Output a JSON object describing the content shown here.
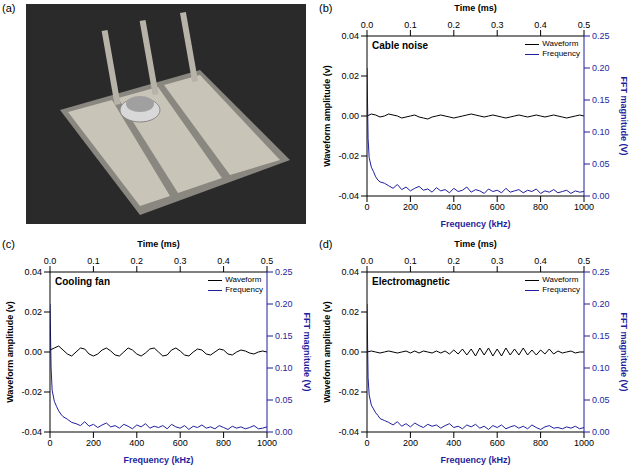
{
  "photo_panel": {
    "label": "(a)"
  },
  "chart_data": [
    {
      "type": "line",
      "label": "(b)",
      "title": "Cable noise",
      "x_label": "Frequency (kHz)",
      "x2_label": "Time (ms)",
      "y_label": "Waveform amplitude (v)",
      "y2_label": "FFT magnitude (V)",
      "xlim": [
        0,
        1000
      ],
      "xticks": [
        0,
        200,
        400,
        600,
        800,
        1000
      ],
      "x2lim": [
        0,
        0.5
      ],
      "x2ticks": [
        {
          "value": 0,
          "label": "0.0"
        },
        0.1,
        0.2,
        0.3,
        0.4,
        0.5
      ],
      "ylim": [
        -0.04,
        0.04
      ],
      "yticks": [
        -0.04,
        -0.02,
        {
          "value": 0,
          "label": "0.00"
        },
        0.02,
        0.04
      ],
      "y2lim": [
        0,
        0.25
      ],
      "y2ticks": [
        {
          "value": 0,
          "label": "0.00"
        },
        0.05,
        {
          "value": 0.1,
          "label": "0.10"
        },
        0.15,
        {
          "value": 0.2,
          "label": "0.20"
        },
        0.25
      ],
      "legend": "top-right",
      "series": [
        {
          "name": "Waveform",
          "color": "#000000",
          "axis": "x2",
          "x": [
            0,
            0.01,
            0.02,
            0.03,
            0.04,
            0.05,
            0.06,
            0.07,
            0.08,
            0.09,
            0.1,
            0.11,
            0.12,
            0.13,
            0.14,
            0.15,
            0.16,
            0.17,
            0.18,
            0.19,
            0.2,
            0.21,
            0.22,
            0.23,
            0.24,
            0.25,
            0.26,
            0.27,
            0.28,
            0.29,
            0.3,
            0.31,
            0.32,
            0.33,
            0.34,
            0.35,
            0.36,
            0.37,
            0.38,
            0.39,
            0.4,
            0.41,
            0.42,
            0.43,
            0.44,
            0.45,
            0.46,
            0.47,
            0.48,
            0.49,
            0.5
          ],
          "values": [
            0.0,
            0.001,
            0.0005,
            -0.0005,
            0.0,
            0.001,
            0.0005,
            0.0,
            -0.001,
            -0.0005,
            0.0,
            0.0005,
            -0.0005,
            -0.001,
            -0.0015,
            -0.0005,
            0.0,
            0.0005,
            0.0,
            -0.0005,
            -0.001,
            -0.0005,
            0.0,
            0.0005,
            0.001,
            0.0005,
            0.0,
            -0.0005,
            0.0,
            0.0005,
            0.0,
            -0.0005,
            -0.001,
            -0.0005,
            0.0,
            0.0005,
            0.0,
            -0.0005,
            0.0,
            0.0005,
            0.0,
            -0.0005,
            0.0,
            0.0005,
            0.0,
            -0.0005,
            -0.001,
            -0.0005,
            0.0,
            0.0005,
            0.0
          ]
        },
        {
          "name": "Frequency",
          "color": "#1f1f9e",
          "axis": "y2",
          "x": [
            0,
            5,
            10,
            20,
            30,
            40,
            50,
            60,
            80,
            100,
            120,
            140,
            160,
            180,
            200,
            220,
            240,
            260,
            280,
            300,
            320,
            340,
            360,
            380,
            400,
            420,
            440,
            460,
            480,
            500,
            520,
            540,
            560,
            580,
            600,
            620,
            640,
            660,
            680,
            700,
            720,
            740,
            760,
            780,
            800,
            820,
            840,
            860,
            880,
            900,
            920,
            940,
            960,
            980,
            1000
          ],
          "values": [
            0.2,
            0.09,
            0.06,
            0.045,
            0.038,
            0.03,
            0.025,
            0.022,
            0.02,
            0.016,
            0.012,
            0.018,
            0.01,
            0.014,
            0.008,
            0.012,
            0.015,
            0.009,
            0.011,
            0.006,
            0.013,
            0.008,
            0.01,
            0.005,
            0.012,
            0.007,
            0.009,
            0.014,
            0.006,
            0.01,
            0.008,
            0.004,
            0.011,
            0.007,
            0.009,
            0.005,
            0.012,
            0.006,
            0.008,
            0.01,
            0.005,
            0.009,
            0.007,
            0.011,
            0.004,
            0.008,
            0.006,
            0.01,
            0.005,
            0.007,
            0.009,
            0.004,
            0.008,
            0.006,
            0.007
          ]
        }
      ]
    },
    {
      "type": "line",
      "label": "(c)",
      "title": "Cooling fan",
      "x_label": "Frequency (kHz)",
      "x2_label": "Time (ms)",
      "y_label": "Waveform amplitude (v)",
      "y2_label": "FFT magnitude (V)",
      "xlim": [
        0,
        1000
      ],
      "xticks": [
        0,
        200,
        400,
        600,
        800,
        1000
      ],
      "x2lim": [
        0,
        0.5
      ],
      "x2ticks": [
        {
          "value": 0,
          "label": "0.0"
        },
        0.1,
        0.2,
        0.3,
        0.4,
        0.5
      ],
      "ylim": [
        -0.04,
        0.04
      ],
      "yticks": [
        -0.04,
        -0.02,
        {
          "value": 0,
          "label": "0.00"
        },
        0.02,
        0.04
      ],
      "y2lim": [
        0,
        0.25
      ],
      "y2ticks": [
        {
          "value": 0,
          "label": "0.00"
        },
        0.05,
        {
          "value": 0.1,
          "label": "0.10"
        },
        0.15,
        {
          "value": 0.2,
          "label": "0.20"
        },
        0.25
      ],
      "legend": "top-right",
      "series": [
        {
          "name": "Waveform",
          "color": "#000000",
          "axis": "x2",
          "x": [
            0,
            0.01,
            0.02,
            0.03,
            0.04,
            0.05,
            0.06,
            0.07,
            0.08,
            0.09,
            0.1,
            0.11,
            0.12,
            0.13,
            0.14,
            0.15,
            0.16,
            0.17,
            0.18,
            0.19,
            0.2,
            0.21,
            0.22,
            0.23,
            0.24,
            0.25,
            0.26,
            0.27,
            0.28,
            0.29,
            0.3,
            0.31,
            0.32,
            0.33,
            0.34,
            0.35,
            0.36,
            0.37,
            0.38,
            0.39,
            0.4,
            0.41,
            0.42,
            0.43,
            0.44,
            0.45,
            0.46,
            0.47,
            0.48,
            0.49,
            0.5
          ],
          "values": [
            0.001,
            0.002,
            0.003,
            0.001,
            -0.001,
            -0.002,
            0.0,
            0.002,
            0.0015,
            -0.001,
            -0.002,
            -0.001,
            0.001,
            0.002,
            0.0005,
            -0.0015,
            -0.002,
            0.0,
            0.002,
            0.001,
            -0.001,
            -0.002,
            -0.0005,
            0.0015,
            0.002,
            0.0,
            -0.002,
            -0.0015,
            0.001,
            0.002,
            0.0005,
            -0.0015,
            -0.002,
            0.0,
            0.0015,
            0.001,
            -0.001,
            -0.0015,
            0.0,
            0.0015,
            0.001,
            -0.001,
            -0.0015,
            0.0,
            0.001,
            0.0005,
            -0.0005,
            -0.001,
            0.0,
            0.0005,
            0.0
          ]
        },
        {
          "name": "Frequency",
          "color": "#1f1f9e",
          "axis": "y2",
          "x": [
            0,
            5,
            10,
            20,
            30,
            40,
            50,
            60,
            80,
            100,
            120,
            140,
            160,
            180,
            200,
            220,
            240,
            260,
            280,
            300,
            320,
            340,
            360,
            380,
            400,
            420,
            440,
            460,
            480,
            500,
            520,
            540,
            560,
            580,
            600,
            620,
            640,
            660,
            680,
            700,
            720,
            740,
            760,
            780,
            800,
            820,
            840,
            860,
            880,
            900,
            920,
            940,
            960,
            980,
            1000
          ],
          "values": [
            0.2,
            0.1,
            0.065,
            0.048,
            0.04,
            0.033,
            0.028,
            0.024,
            0.02,
            0.015,
            0.013,
            0.01,
            0.016,
            0.009,
            0.012,
            0.007,
            0.011,
            0.014,
            0.008,
            0.01,
            0.006,
            0.012,
            0.009,
            0.005,
            0.011,
            0.008,
            0.013,
            0.006,
            0.009,
            0.007,
            0.01,
            0.005,
            0.012,
            0.008,
            0.006,
            0.01,
            0.004,
            0.009,
            0.007,
            0.011,
            0.006,
            0.008,
            0.005,
            0.01,
            0.007,
            0.004,
            0.009,
            0.006,
            0.008,
            0.005,
            0.007,
            0.01,
            0.005,
            0.006,
            0.008
          ]
        }
      ]
    },
    {
      "type": "line",
      "label": "(d)",
      "title": "Electromagnetic",
      "x_label": "Frequency (kHz)",
      "x2_label": "Time (ms)",
      "y_label": "Waveform amplitude (v)",
      "y2_label": "FFT magnitude (V)",
      "xlim": [
        0,
        1000
      ],
      "xticks": [
        0,
        200,
        400,
        600,
        800,
        1000
      ],
      "x2lim": [
        0,
        0.5
      ],
      "x2ticks": [
        {
          "value": 0,
          "label": "0.0"
        },
        0.1,
        0.2,
        0.3,
        0.4,
        0.5
      ],
      "ylim": [
        -0.04,
        0.04
      ],
      "yticks": [
        -0.04,
        -0.02,
        {
          "value": 0,
          "label": "0.00"
        },
        0.02,
        0.04
      ],
      "y2lim": [
        0,
        0.25
      ],
      "y2ticks": [
        {
          "value": 0,
          "label": "0.00"
        },
        0.05,
        {
          "value": 0.1,
          "label": "0.10"
        },
        0.15,
        {
          "value": 0.2,
          "label": "0.20"
        },
        0.25
      ],
      "legend": "top-right",
      "series": [
        {
          "name": "Waveform",
          "color": "#000000",
          "axis": "x2",
          "x": [
            0,
            0.01,
            0.02,
            0.03,
            0.04,
            0.05,
            0.06,
            0.07,
            0.08,
            0.09,
            0.1,
            0.11,
            0.12,
            0.13,
            0.14,
            0.15,
            0.16,
            0.17,
            0.18,
            0.19,
            0.2,
            0.21,
            0.22,
            0.23,
            0.24,
            0.25,
            0.26,
            0.27,
            0.28,
            0.29,
            0.3,
            0.31,
            0.32,
            0.33,
            0.34,
            0.35,
            0.36,
            0.37,
            0.38,
            0.39,
            0.4,
            0.41,
            0.42,
            0.43,
            0.44,
            0.45,
            0.46,
            0.47,
            0.48,
            0.49,
            0.5
          ],
          "values": [
            0.0,
            0.0005,
            0.0,
            -0.0005,
            0.0,
            0.0005,
            0.0,
            -0.0005,
            0.0,
            0.0005,
            -0.0005,
            0.0005,
            -0.0005,
            0.0005,
            0.0,
            -0.0005,
            0.0005,
            -0.0005,
            0.0005,
            -0.001,
            0.001,
            -0.001,
            0.0015,
            -0.0015,
            0.0015,
            -0.002,
            0.002,
            -0.0015,
            0.002,
            -0.002,
            0.0015,
            -0.002,
            0.002,
            -0.0015,
            0.0015,
            -0.0015,
            0.002,
            -0.0015,
            0.001,
            -0.0015,
            0.001,
            -0.001,
            0.0015,
            -0.001,
            0.0005,
            -0.0005,
            0.0,
            0.0005,
            -0.0005,
            0.0,
            0.0
          ]
        },
        {
          "name": "Frequency",
          "color": "#1f1f9e",
          "axis": "y2",
          "x": [
            0,
            5,
            10,
            20,
            30,
            40,
            50,
            60,
            80,
            100,
            120,
            140,
            160,
            180,
            200,
            220,
            240,
            260,
            280,
            300,
            320,
            340,
            360,
            380,
            400,
            420,
            440,
            460,
            480,
            500,
            520,
            540,
            560,
            580,
            600,
            620,
            640,
            660,
            680,
            700,
            720,
            740,
            760,
            780,
            800,
            820,
            840,
            860,
            880,
            900,
            920,
            940,
            960,
            980,
            1000
          ],
          "values": [
            0.2,
            0.085,
            0.058,
            0.042,
            0.036,
            0.03,
            0.026,
            0.021,
            0.018,
            0.015,
            0.011,
            0.016,
            0.009,
            0.013,
            0.008,
            0.014,
            0.01,
            0.007,
            0.012,
            0.009,
            0.011,
            0.006,
            0.01,
            0.013,
            0.007,
            0.009,
            0.005,
            0.011,
            0.008,
            0.012,
            0.006,
            0.009,
            0.004,
            0.01,
            0.007,
            0.011,
            0.005,
            0.008,
            0.01,
            0.006,
            0.009,
            0.005,
            0.011,
            0.007,
            0.004,
            0.008,
            0.01,
            0.006,
            0.007,
            0.005,
            0.008,
            0.006,
            0.009,
            0.005,
            0.007
          ]
        }
      ]
    }
  ]
}
